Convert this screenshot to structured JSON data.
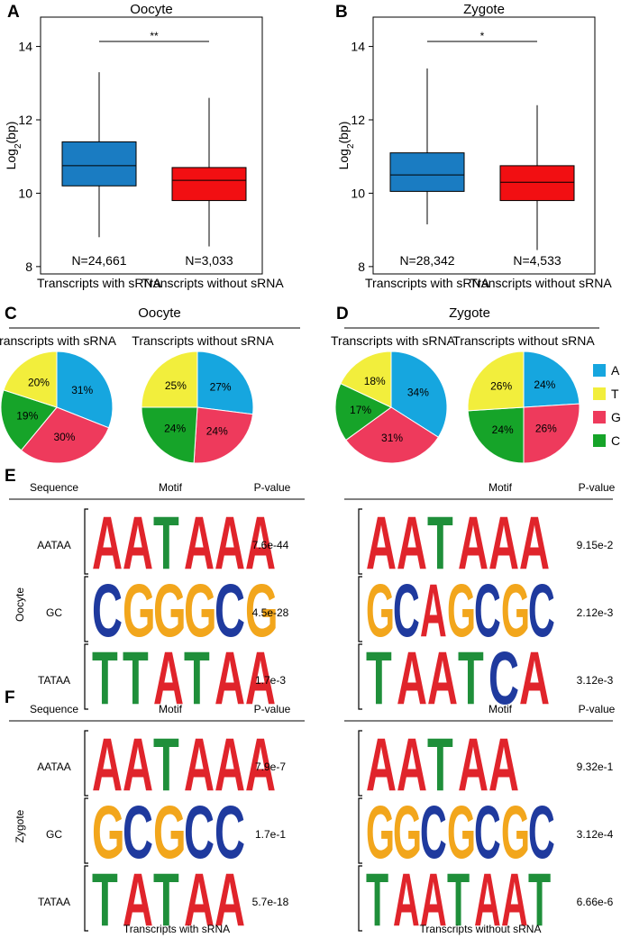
{
  "colors": {
    "A": "#16a6df",
    "T": "#f2ee3c",
    "G": "#ee3a5c",
    "C": "#16a429",
    "with": "#1a7cc2",
    "without": "#f20f12",
    "motifA": "#e0242b",
    "motifC": "#1f3a9e",
    "motifG": "#f2a61c",
    "motifT": "#1f8f3a"
  },
  "chart_data": [
    {
      "id": "A",
      "type": "box",
      "title": "Oocyte",
      "ylabel": "Log2(bp)",
      "ylim": [
        7.8,
        14.8
      ],
      "yticks": [
        8,
        10,
        12,
        14
      ],
      "significance": "**",
      "groups": [
        {
          "name": "Transcripts with sRNA",
          "n_label": "N=24,661",
          "whisker_low": 8.8,
          "q1": 10.2,
          "median": 10.75,
          "q3": 11.4,
          "whisker_high": 13.3
        },
        {
          "name": "Transcripts without sRNA",
          "n_label": "N=3,033",
          "whisker_low": 8.55,
          "q1": 9.8,
          "median": 10.35,
          "q3": 10.7,
          "whisker_high": 12.6
        }
      ]
    },
    {
      "id": "B",
      "type": "box",
      "title": "Zygote",
      "ylabel": "Log2(bp)",
      "ylim": [
        7.8,
        14.8
      ],
      "yticks": [
        8,
        10,
        12,
        14
      ],
      "significance": "*",
      "groups": [
        {
          "name": "Transcripts with sRNA",
          "n_label": "N=28,342",
          "whisker_low": 9.15,
          "q1": 10.05,
          "median": 10.5,
          "q3": 11.1,
          "whisker_high": 13.4
        },
        {
          "name": "Transcripts without sRNA",
          "n_label": "N=4,533",
          "whisker_low": 8.45,
          "q1": 9.8,
          "median": 10.3,
          "q3": 10.75,
          "whisker_high": 12.4
        }
      ]
    },
    {
      "id": "C",
      "type": "pie",
      "title": "Oocyte",
      "pies": [
        {
          "name": "Transcripts with sRNA",
          "values": {
            "A": 31,
            "G": 30,
            "C": 19,
            "T": 20
          },
          "labels": {
            "A": "31%",
            "G": "30%",
            "C": "19%",
            "T": "20%"
          }
        },
        {
          "name": "Transcripts without sRNA",
          "values": {
            "A": 27,
            "G": 24,
            "C": 24,
            "T": 25
          },
          "labels": {
            "A": "27%",
            "G": "24%",
            "C": "24%",
            "T": "25%"
          }
        }
      ]
    },
    {
      "id": "D",
      "type": "pie",
      "title": "Zygote",
      "pies": [
        {
          "name": "Transcripts with sRNA",
          "values": {
            "A": 34,
            "G": 31,
            "C": 17,
            "T": 18
          },
          "labels": {
            "A": "34%",
            "G": "31%",
            "C": "17%",
            "T": "18%"
          }
        },
        {
          "name": "Transcripts without sRNA",
          "values": {
            "A": 24,
            "G": 26,
            "C": 24,
            "T": 26
          },
          "labels": {
            "A": "24%",
            "G": "26%",
            "C": "24%",
            "T": "26%"
          }
        }
      ]
    },
    {
      "id": "E",
      "type": "motif-table",
      "group": "Oocyte",
      "rows": [
        {
          "sequence": "AATAA",
          "with": {
            "letters": "AATAAA",
            "p": "7.6e-44"
          },
          "without": {
            "letters": "AATAAA",
            "p": "9.15e-2"
          }
        },
        {
          "sequence": "GC",
          "with": {
            "letters": "CGGGCG",
            "p": "4.5e-28"
          },
          "without": {
            "letters": "GCAGCGC",
            "p": "2.12e-3"
          }
        },
        {
          "sequence": "TATAA",
          "with": {
            "letters": "TTATAA",
            "p": "1.7e-3"
          },
          "without": {
            "letters": "TAATCA",
            "p": "3.12e-3"
          }
        }
      ]
    },
    {
      "id": "F",
      "type": "motif-table",
      "group": "Zygote",
      "rows": [
        {
          "sequence": "AATAA",
          "with": {
            "letters": "AATAAA",
            "p": "7.9e-7"
          },
          "without": {
            "letters": "AATAA",
            "p": "9.32e-1"
          }
        },
        {
          "sequence": "GC",
          "with": {
            "letters": "GCGCC",
            "p": "1.7e-1"
          },
          "without": {
            "letters": "GGCGCGC",
            "p": "3.12e-4"
          }
        },
        {
          "sequence": "TATAA",
          "with": {
            "letters": "TATAA",
            "p": "5.7e-18"
          },
          "without": {
            "letters": "TAATAAT",
            "p": "6.66e-6"
          }
        }
      ]
    }
  ],
  "panel_letters": {
    "A": "A",
    "B": "B",
    "C": "C",
    "D": "D",
    "E": "E",
    "F": "F"
  },
  "box_xlabels": {
    "with": "Transcripts with sRNA",
    "without": "Transcripts without sRNA"
  },
  "legend": [
    {
      "key": "A",
      "label": "A"
    },
    {
      "key": "T",
      "label": "T"
    },
    {
      "key": "G",
      "label": "G"
    },
    {
      "key": "C",
      "label": "C"
    }
  ],
  "table_headers": {
    "sequence": "Sequence",
    "motif": "Motif",
    "pvalue": "P-value"
  },
  "footer": {
    "with": "Transcripts with sRNA",
    "without": "Transcripts without sRNA"
  }
}
